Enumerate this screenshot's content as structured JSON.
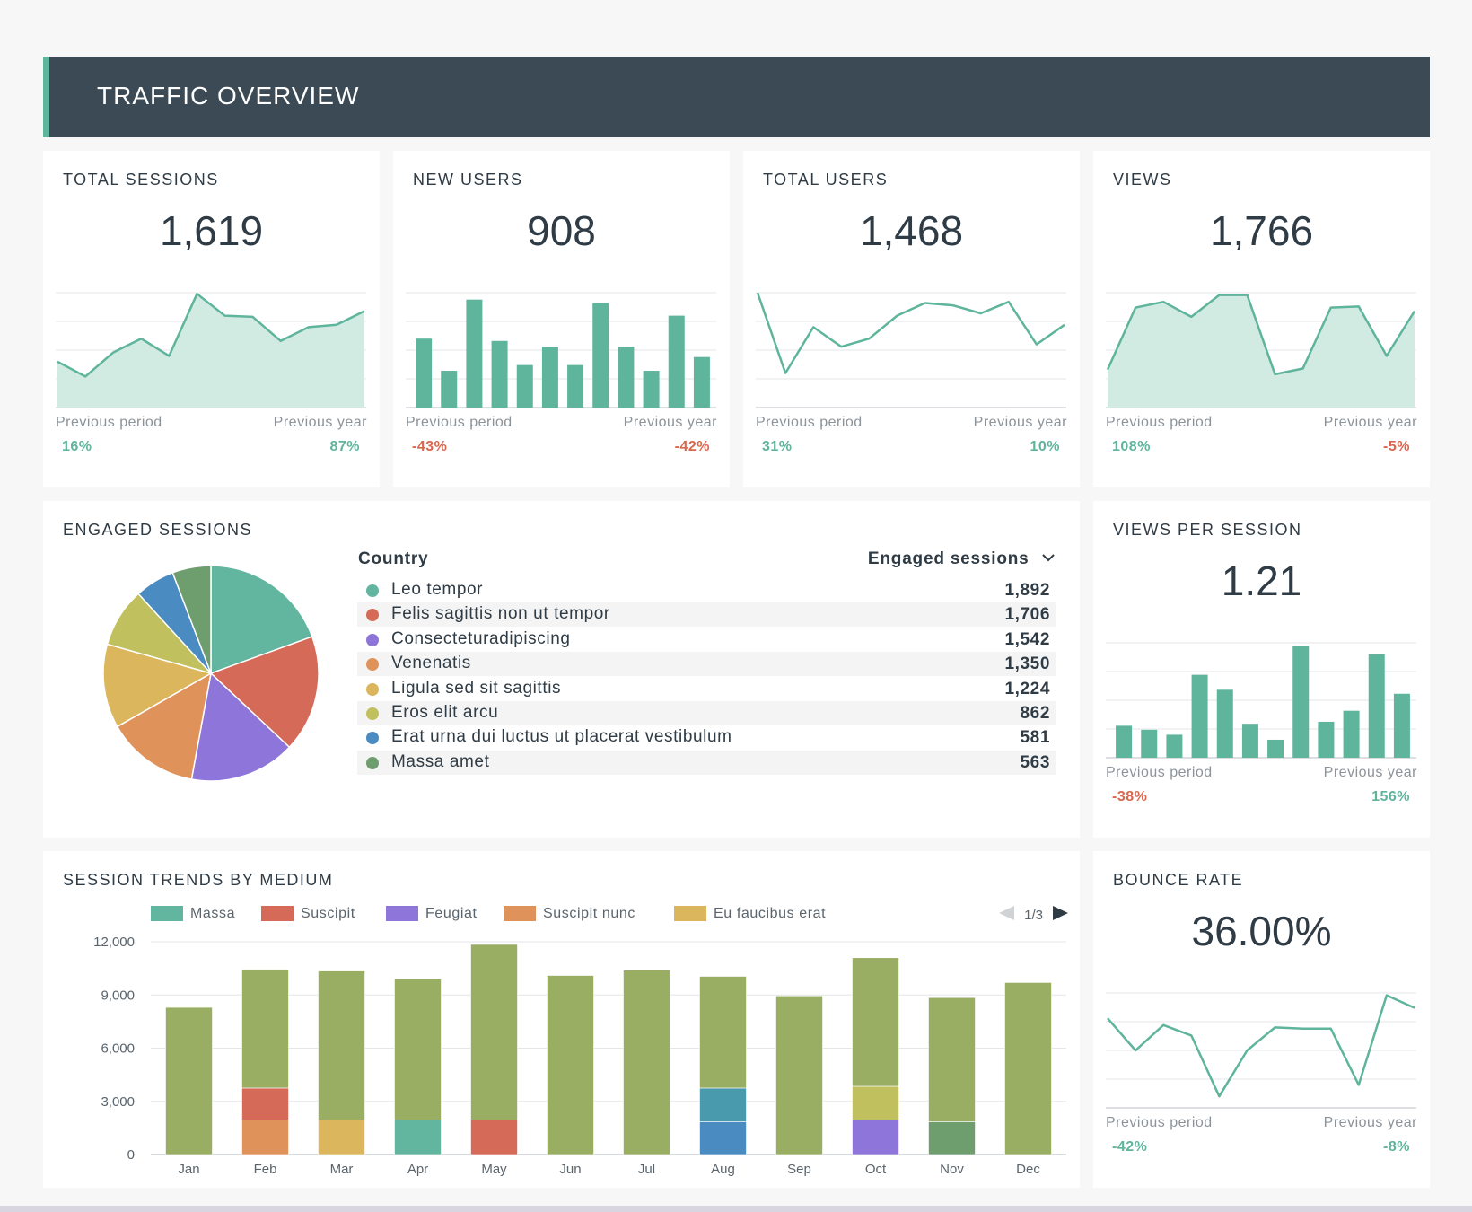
{
  "header": {
    "title": "TRAFFIC OVERVIEW"
  },
  "colors": {
    "accent": "#5fb49c",
    "area_fill": "#d1ebe2",
    "positive": "#5fb49c",
    "negative": "#d9674e",
    "header_bg": "#3b4a55"
  },
  "comparison_labels": {
    "previous_period": "Previous period",
    "previous_year": "Previous year"
  },
  "kpis": [
    {
      "title": "TOTAL SESSIONS",
      "value": "1,619",
      "prev_period": "16%",
      "prev_period_sign": "pos",
      "prev_year": "87%",
      "prev_year_sign": "pos",
      "chart": "area",
      "series": [
        40,
        27,
        48,
        60,
        45,
        99,
        80,
        79,
        58,
        70,
        72,
        84
      ]
    },
    {
      "title": "NEW USERS",
      "value": "908",
      "prev_period": "-43%",
      "prev_period_sign": "neg",
      "prev_year": "-42%",
      "prev_year_sign": "neg",
      "chart": "bar",
      "series": [
        60,
        32,
        94,
        58,
        37,
        53,
        37,
        91,
        53,
        32,
        80,
        44
      ]
    },
    {
      "title": "TOTAL USERS",
      "value": "1,468",
      "prev_period": "31%",
      "prev_period_sign": "pos",
      "prev_year": "10%",
      "prev_year_sign": "pos",
      "chart": "line",
      "series": [
        100,
        30,
        70,
        53,
        60,
        80,
        91,
        89,
        82,
        92,
        55,
        72
      ]
    },
    {
      "title": "VIEWS",
      "value": "1,766",
      "prev_period": "108%",
      "prev_period_sign": "pos",
      "prev_year": "-5%",
      "prev_year_sign": "neg",
      "chart": "area",
      "series": [
        33,
        87,
        92,
        79,
        98,
        98,
        29,
        34,
        87,
        88,
        45,
        84
      ]
    }
  ],
  "engaged_sessions": {
    "title": "ENGAGED SESSIONS",
    "col_country": "Country",
    "col_value": "Engaged sessions",
    "rows": [
      {
        "name": "Leo tempor",
        "value": "1,892",
        "num": 1892,
        "color": "#62b59e"
      },
      {
        "name": "Felis sagittis non ut tempor",
        "value": "1,706",
        "num": 1706,
        "color": "#d66a58"
      },
      {
        "name": "Consecteturadipiscing",
        "value": "1,542",
        "num": 1542,
        "color": "#8e75d9"
      },
      {
        "name": "Venenatis",
        "value": "1,350",
        "num": 1350,
        "color": "#e0925b"
      },
      {
        "name": "Ligula sed sit sagittis",
        "value": "1,224",
        "num": 1224,
        "color": "#dcb65c"
      },
      {
        "name": "Eros elit arcu",
        "value": "862",
        "num": 862,
        "color": "#c1c05e"
      },
      {
        "name": "Erat urna dui luctus ut placerat vestibulum",
        "value": "581",
        "num": 581,
        "color": "#4a8bc2"
      },
      {
        "name": "Massa amet",
        "value": "563",
        "num": 563,
        "color": "#6e9e6e"
      }
    ]
  },
  "views_per_session": {
    "title": "VIEWS PER SESSION",
    "value": "1.21",
    "prev_period": "-38%",
    "prev_period_sign": "neg",
    "prev_year": "156%",
    "prev_year_sign": "pos",
    "series": [
      32,
      28,
      23,
      83,
      68,
      34,
      18,
      112,
      36,
      47,
      104,
      64
    ]
  },
  "bounce_rate": {
    "title": "BOUNCE RATE",
    "value": "36.00%",
    "prev_period": "-42%",
    "prev_period_sign": "pos",
    "prev_year": "-8%",
    "prev_year_sign": "pos",
    "series": [
      78,
      50,
      72,
      63,
      10,
      50,
      70,
      69,
      69,
      20,
      98,
      87
    ]
  },
  "session_trends": {
    "title": "SESSION TRENDS BY MEDIUM",
    "pager": "1/3",
    "legend": [
      {
        "name": "Massa",
        "color": "#62b59e"
      },
      {
        "name": "Suscipit",
        "color": "#d66a58"
      },
      {
        "name": "Feugiat",
        "color": "#8e75d9"
      },
      {
        "name": "Suscipit nunc",
        "color": "#e0925b"
      },
      {
        "name": "Eu faucibus erat",
        "color": "#dcb65c"
      }
    ]
  },
  "chart_data": {
    "type": "bar",
    "stacked": true,
    "title": "SESSION TRENDS BY MEDIUM",
    "categories": [
      "Jan",
      "Feb",
      "Mar",
      "Apr",
      "May",
      "Jun",
      "Jul",
      "Aug",
      "Sep",
      "Oct",
      "Nov",
      "Dec"
    ],
    "yticks": [
      "0",
      "3,000",
      "6,000",
      "9,000",
      "12,000"
    ],
    "ylim": [
      0,
      12000
    ],
    "stacks": [
      [
        {
          "v": 8300,
          "c": "#99ad63"
        }
      ],
      [
        {
          "v": 1950,
          "c": "#e0925b"
        },
        {
          "v": 1800,
          "c": "#d66a58"
        },
        {
          "v": 6700,
          "c": "#99ad63"
        }
      ],
      [
        {
          "v": 1950,
          "c": "#dcb65c"
        },
        {
          "v": 8400,
          "c": "#99ad63"
        }
      ],
      [
        {
          "v": 1950,
          "c": "#62b59e"
        },
        {
          "v": 7950,
          "c": "#99ad63"
        }
      ],
      [
        {
          "v": 1950,
          "c": "#d66a58"
        },
        {
          "v": 9900,
          "c": "#99ad63"
        }
      ],
      [
        {
          "v": 10100,
          "c": "#99ad63"
        }
      ],
      [
        {
          "v": 10400,
          "c": "#99ad63"
        }
      ],
      [
        {
          "v": 1850,
          "c": "#4a8bc2"
        },
        {
          "v": 1900,
          "c": "#4a9aae"
        },
        {
          "v": 6300,
          "c": "#99ad63"
        }
      ],
      [
        {
          "v": 8950,
          "c": "#99ad63"
        }
      ],
      [
        {
          "v": 1950,
          "c": "#8e75d9"
        },
        {
          "v": 1900,
          "c": "#c1c05e"
        },
        {
          "v": 7250,
          "c": "#99ad63"
        }
      ],
      [
        {
          "v": 1850,
          "c": "#6e9e6e"
        },
        {
          "v": 7000,
          "c": "#99ad63"
        }
      ],
      [
        {
          "v": 9700,
          "c": "#99ad63"
        }
      ]
    ]
  }
}
